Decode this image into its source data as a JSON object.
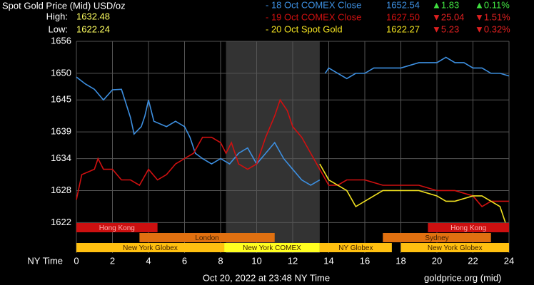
{
  "chart_data": {
    "type": "line",
    "title": "Spot Gold Price (Mid) USD/oz",
    "high_label": "High:",
    "high_value": "1632.48",
    "low_label": "Low:",
    "low_value": "1622.24",
    "x_label": "NY Time",
    "footer": "Oct 20, 2022 at 23:48 NY Time",
    "source": "goldprice.org (mid)",
    "xlim": [
      0,
      24
    ],
    "xticks": [
      0,
      2,
      4,
      6,
      8,
      10,
      12,
      14,
      16,
      18,
      20,
      22,
      24
    ],
    "ylim": [
      1616.3,
      1656
    ],
    "yticks": [
      1622,
      1628,
      1634,
      1639,
      1645,
      1650,
      1656
    ],
    "grid": true,
    "shade": [
      8.3,
      13.5
    ],
    "series": [
      {
        "name": "- 18 Oct COMEX Close",
        "price": "1652.54",
        "change": "▲1.83",
        "percent": "▲0.11%",
        "direction": "up",
        "color": "#3d8fe0",
        "x": [
          0,
          0.5,
          1,
          1.5,
          2,
          2.5,
          3,
          3.2,
          3.6,
          3.8,
          4,
          4.3,
          5,
          5.5,
          6,
          6.3,
          6.6,
          7,
          7.5,
          8,
          8.5,
          9,
          9.5,
          10,
          10.5,
          11,
          11.5,
          12,
          12.5,
          13,
          13.5,
          13.6,
          13.8,
          14,
          14.5,
          15,
          15.5,
          16,
          16.5,
          17,
          18,
          19,
          19.5,
          20,
          20.5,
          21,
          21.5,
          22,
          22.5,
          23,
          23.5,
          24
        ],
        "values": [
          1649.3,
          1648,
          1647,
          1645,
          1646.9,
          1647,
          1641.7,
          1638.6,
          1640,
          1642,
          1645,
          1641,
          1640,
          1641,
          1640,
          1638,
          1635,
          1634,
          1633,
          1634,
          1633,
          1635,
          1636,
          1633,
          1635,
          1637,
          1634,
          1632,
          1630,
          1629,
          1630,
          null,
          1650,
          1651,
          1650,
          1649,
          1650,
          1650,
          1651,
          1651,
          1651,
          1652,
          1652,
          1652,
          1653,
          1652,
          1652,
          1651,
          1651,
          1650,
          1650,
          1649.5
        ]
      },
      {
        "name": "- 19 Oct COMEX Close",
        "price": "1627.50",
        "change": "▼25.04",
        "percent": "▼1.51%",
        "direction": "down",
        "color": "#d01010",
        "x": [
          0,
          0.3,
          1,
          1.2,
          1.5,
          2,
          2.5,
          3,
          3.5,
          4,
          4.5,
          5,
          5.5,
          6,
          6.5,
          7,
          7.5,
          8,
          8.3,
          8.6,
          9,
          9.5,
          10,
          10.5,
          11,
          11.3,
          11.7,
          12,
          12.5,
          13,
          13.5,
          14,
          14.5,
          15,
          16,
          17,
          18,
          19,
          20,
          21,
          22,
          22.5,
          23,
          23.5,
          24
        ],
        "values": [
          1626.3,
          1631,
          1632,
          1634,
          1632,
          1632,
          1630,
          1630,
          1629,
          1632,
          1630,
          1631,
          1633,
          1634,
          1635,
          1638,
          1638,
          1637,
          1635,
          1637,
          1633,
          1632,
          1633,
          1638,
          1642,
          1645,
          1643,
          1640,
          1638,
          1635,
          1632,
          1629,
          1629,
          1630,
          1630,
          1629,
          1629,
          1629,
          1628,
          1628,
          1627,
          1625,
          1626,
          1626,
          1626
        ]
      },
      {
        "name": "- 20 Oct Spot Gold",
        "price": "1622.27",
        "change": "▼5.23",
        "percent": "▼0.32%",
        "direction": "down",
        "color": "#f0e020",
        "x": [
          13.5,
          14,
          14.5,
          15,
          15.5,
          16,
          17,
          18,
          19,
          20,
          20.5,
          21,
          22,
          22.5,
          23,
          23.5,
          23.8
        ],
        "values": [
          1633,
          1630,
          1629,
          1628,
          1625,
          1626,
          1628,
          1628,
          1628,
          1627,
          1626,
          1626,
          1627,
          1627,
          1626,
          1625,
          1622
        ]
      }
    ],
    "sessions": [
      {
        "name": "Hong Kong",
        "start": 0,
        "end": 4.5,
        "row": 0,
        "color": "#cc1010"
      },
      {
        "name": "Hong Kong",
        "start": 19.5,
        "end": 24,
        "row": 0,
        "color": "#cc1010"
      },
      {
        "name": "London",
        "start": 3.5,
        "end": 11,
        "row": 1,
        "color": "#e07010"
      },
      {
        "name": "Sydney",
        "start": 17,
        "end": 23,
        "row": 1,
        "color": "#e07010"
      },
      {
        "name": "New York Globex",
        "start": 0,
        "end": 8.2,
        "row": 2,
        "color": "#ffc010"
      },
      {
        "name": "New York COMEX",
        "start": 8.2,
        "end": 13.5,
        "row": 2,
        "color": "#ffff20"
      },
      {
        "name": "NY Globex",
        "start": 13.5,
        "end": 17.5,
        "row": 2,
        "color": "#ffc010"
      },
      {
        "name": "New York Globex",
        "start": 18,
        "end": 24,
        "row": 2,
        "color": "#ffc010"
      }
    ]
  }
}
